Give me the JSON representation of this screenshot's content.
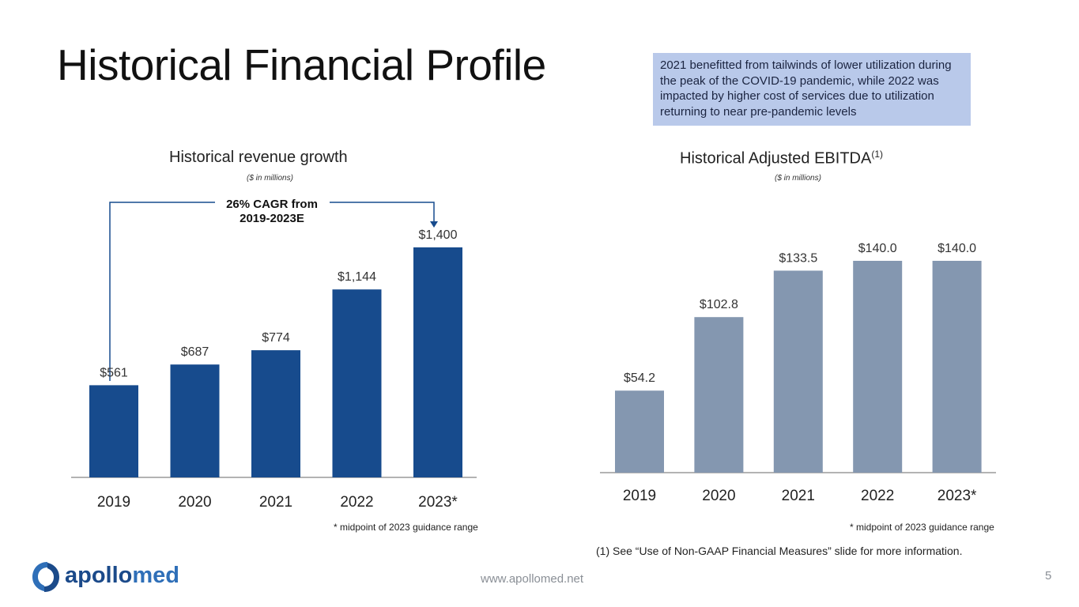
{
  "page": {
    "title": "Historical Financial Profile",
    "note": "2021 benefitted from tailwinds of lower utilization during the peak of the COVID-19 pandemic, while 2022 was impacted by higher cost of services due to utilization returning to near pre-pandemic levels",
    "url": "www.apollomed.net",
    "page_number": "5",
    "nongaap_note": "(1)  See “Use of Non-GAAP Financial Measures” slide for more information.",
    "logo": {
      "part1": "apollo",
      "part2": "med"
    }
  },
  "colors": {
    "revenue_bar": "#174b8d",
    "ebitda_bar": "#8497b0",
    "axis": "#9a9a9a",
    "connector": "#174b8d"
  },
  "chart_data": [
    {
      "type": "bar",
      "title": "Historical revenue growth",
      "subtitle": "($ in millions)",
      "categories": [
        "2019",
        "2020",
        "2021",
        "2022",
        "2023*"
      ],
      "values": [
        561,
        687,
        774,
        1144,
        1400
      ],
      "data_labels": [
        "$561",
        "$687",
        "$774",
        "$1,144",
        "$1,400"
      ],
      "ylim": [
        0,
        1400
      ],
      "annotation": "26% CAGR from 2019-2023E",
      "footnote": "* midpoint of 2023 guidance range"
    },
    {
      "type": "bar",
      "title": "Historical Adjusted EBITDA",
      "title_superscript": "(1)",
      "subtitle": "($ in millions)",
      "categories": [
        "2019",
        "2020",
        "2021",
        "2022",
        "2023*"
      ],
      "values": [
        54.2,
        102.8,
        133.5,
        140.0,
        140.0
      ],
      "data_labels": [
        "$54.2",
        "$102.8",
        "$133.5",
        "$140.0",
        "$140.0"
      ],
      "ylim": [
        0,
        140
      ],
      "footnote": "* midpoint of 2023 guidance range"
    }
  ]
}
